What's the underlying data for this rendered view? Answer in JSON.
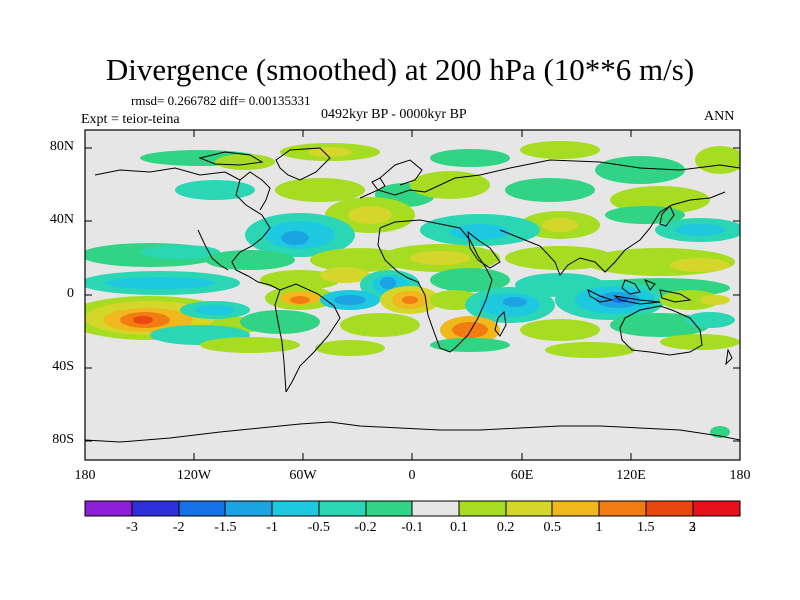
{
  "title": "Divergence (smoothed) at 200 hPa (10**6 m/s)",
  "stats": "rmsd= 0.266782 diff= 0.00135331",
  "period": "0492kyr BP - 0000kyr BP",
  "experiment": "Expt = teior-teina",
  "season": "ANN",
  "map": {
    "lat_ticks": [
      "80N",
      "40N",
      "0",
      "40S",
      "80S"
    ],
    "lon_ticks": [
      "180",
      "120W",
      "60W",
      "0",
      "60E",
      "120E",
      "180"
    ],
    "ocean_color": "#e6e6e6",
    "coast_color": "#000000"
  },
  "colorbar": {
    "labels": [
      "-3",
      "-2",
      "-1.5",
      "-1",
      "-0.5",
      "-0.2",
      "-0.1",
      "0.1",
      "0.2",
      "0.5",
      "1",
      "1.5",
      "2",
      "3"
    ],
    "colors": [
      "#8c1ed8",
      "#3030d8",
      "#1670e6",
      "#1ca3e2",
      "#1ec8de",
      "#2ad6b4",
      "#30d484",
      "#e6e6e6",
      "#a6dc22",
      "#d4d62a",
      "#f0b81c",
      "#f07c12",
      "#e84810",
      "#e8101a"
    ]
  }
}
